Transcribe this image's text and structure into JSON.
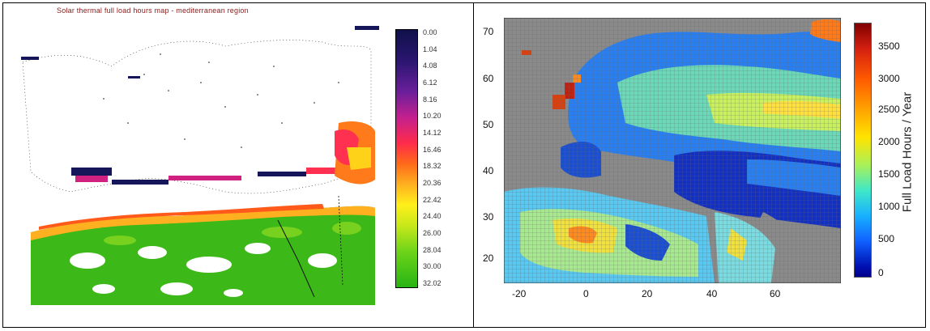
{
  "left_panel": {
    "title": "Solar thermal full load hours map - mediterranean region",
    "colorbar_ticks": [
      "0.00",
      "1.04",
      "4.08",
      "6.12",
      "8.16",
      "10.20",
      "14.12",
      "16.46",
      "18.32",
      "20.36",
      "22.42",
      "24.40",
      "26.00",
      "28.04",
      "30.00",
      "32.02"
    ],
    "colorbar_colors": [
      "#10104a",
      "#2a1670",
      "#6a1f9a",
      "#c4208f",
      "#ff2b4a",
      "#ff6a1a",
      "#ffb020",
      "#fff01a",
      "#c8e81a",
      "#6ed419",
      "#27b414"
    ]
  },
  "right_panel": {
    "y_ticks": [
      "70",
      "60",
      "50",
      "40",
      "30",
      "20"
    ],
    "x_ticks": [
      "-20",
      "0",
      "20",
      "40",
      "60"
    ],
    "colorbar_ticks": [
      "3500",
      "3000",
      "2500",
      "2000",
      "1500",
      "1000",
      "500",
      "0"
    ],
    "colorbar_label": "Full Load Hours / Year",
    "land_background": "#888888"
  }
}
